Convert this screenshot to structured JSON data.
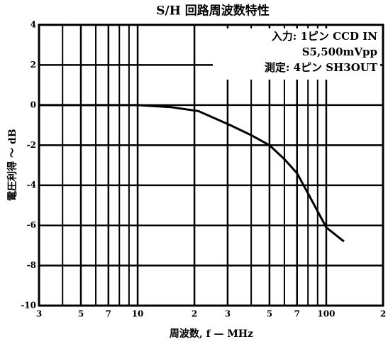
{
  "chart_data": {
    "type": "line",
    "title": "S/H 回路周波数特性",
    "x_label": "周波数, f — MHz",
    "y_label": "電圧利得 ～ dB",
    "annotations": [
      "入力: 1ピン CCD IN",
      "S5,500mVpp",
      "測定: 4ピン SH3OUT"
    ],
    "x_scale": "log",
    "xlim": [
      3,
      200
    ],
    "xticks": [
      3,
      5,
      7,
      10,
      {
        "value": 20,
        "label": "2"
      },
      {
        "value": 30,
        "label": "3"
      },
      {
        "value": 50,
        "label": "5"
      },
      {
        "value": 70,
        "label": "7"
      },
      100,
      {
        "value": 200,
        "label": "2"
      }
    ],
    "x_minor_ticks": [
      4,
      6,
      8,
      9,
      40,
      60,
      80,
      90
    ],
    "ylim": [
      -10,
      4
    ],
    "yticks": [
      4,
      2,
      0,
      -2,
      -4,
      -6,
      -8,
      -10
    ],
    "grid": true,
    "series": [
      {
        "color": "#000000",
        "x": [
          3,
          5,
          7,
          10,
          15,
          21,
          31,
          40,
          50,
          60,
          70,
          80,
          100,
          124
        ],
        "values": [
          0,
          0,
          0,
          0,
          -0.1,
          -0.3,
          -1.0,
          -1.5,
          -2.0,
          -2.7,
          -3.4,
          -4.4,
          -6.1,
          -6.8
        ]
      }
    ]
  }
}
